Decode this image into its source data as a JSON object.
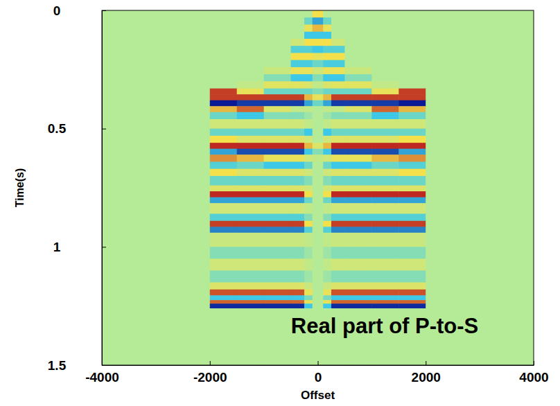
{
  "chart_data": {
    "type": "heatmap",
    "xlabel": "Offset",
    "ylabel": "Time(s)",
    "annotations": [
      "Real part of P-to-S"
    ],
    "xlim": [
      -4000,
      4000
    ],
    "ylim": [
      0,
      1.5
    ],
    "xticks": [
      -4000,
      -2000,
      0,
      2000,
      4000
    ],
    "yticks": [
      0,
      0.5,
      1,
      1.5
    ],
    "zlim": [
      -1,
      1
    ],
    "x_edges": [
      -4000,
      -2000,
      -1500,
      -1000,
      -500,
      -250,
      -100,
      100,
      250,
      500,
      1000,
      1500,
      2000,
      4000
    ],
    "y_edges": [
      0,
      0.03,
      0.06,
      0.09,
      0.12,
      0.15,
      0.18,
      0.21,
      0.24,
      0.27,
      0.3,
      0.33,
      0.355,
      0.38,
      0.405,
      0.43,
      0.46,
      0.5,
      0.53,
      0.56,
      0.585,
      0.61,
      0.64,
      0.67,
      0.7,
      0.74,
      0.765,
      0.79,
      0.815,
      0.86,
      0.89,
      0.915,
      0.94,
      1.0,
      1.05,
      1.1,
      1.15,
      1.18,
      1.205,
      1.225,
      1.24,
      1.26,
      1.5
    ],
    "values": [
      [
        0,
        0,
        0,
        0,
        0,
        0,
        0.5,
        0,
        0,
        0,
        0,
        0,
        0
      ],
      [
        0,
        0,
        0,
        0,
        0,
        -0.3,
        -0.6,
        -0.3,
        0,
        0,
        0,
        0,
        0
      ],
      [
        0,
        0,
        0,
        0,
        0,
        0.4,
        0.6,
        0.4,
        0,
        0,
        0,
        0,
        0
      ],
      [
        0,
        0,
        0,
        0,
        0,
        -0.5,
        -0.5,
        -0.5,
        0,
        0,
        0,
        0,
        0
      ],
      [
        0,
        0,
        0,
        0,
        0.2,
        0.5,
        0.5,
        0.5,
        0.2,
        0,
        0,
        0,
        0
      ],
      [
        0,
        0,
        0,
        0,
        -0.4,
        -0.4,
        -0.5,
        -0.4,
        -0.4,
        0,
        0,
        0,
        0
      ],
      [
        0,
        0,
        0,
        0,
        0.5,
        0.5,
        0.4,
        0.5,
        0.5,
        0,
        0,
        0,
        0
      ],
      [
        0,
        0,
        0,
        0,
        -0.45,
        -0.45,
        -0.3,
        -0.45,
        -0.45,
        0,
        0,
        0,
        0
      ],
      [
        0,
        0,
        0,
        0.15,
        0.4,
        0.4,
        0.2,
        0.4,
        0.4,
        0.15,
        0,
        0,
        0
      ],
      [
        0,
        0,
        0,
        -0.2,
        -0.5,
        -0.5,
        -0.2,
        -0.5,
        -0.5,
        -0.2,
        0,
        0,
        0
      ],
      [
        0,
        0,
        0.1,
        0.35,
        0.35,
        0.3,
        0.1,
        0.3,
        0.35,
        0.35,
        0.1,
        0,
        0
      ],
      [
        0,
        0.9,
        0.4,
        -0.3,
        -0.3,
        -0.3,
        -0.2,
        -0.3,
        -0.3,
        -0.3,
        0.4,
        0.9,
        0
      ],
      [
        0,
        0.9,
        0.9,
        0.9,
        0.9,
        0.6,
        0.4,
        0.6,
        0.9,
        0.9,
        0.9,
        0.9,
        0
      ],
      [
        0,
        -1,
        -0.9,
        -0.9,
        -0.9,
        -0.6,
        -0.3,
        -0.6,
        -0.9,
        -0.9,
        -0.9,
        -1,
        0
      ],
      [
        0,
        0.6,
        0.8,
        0.3,
        0.1,
        0.1,
        0,
        0.1,
        0.1,
        0.3,
        0.8,
        0.6,
        0
      ],
      [
        0,
        -0.3,
        -0.5,
        -0.2,
        -0.2,
        -0.1,
        0,
        -0.1,
        -0.2,
        -0.2,
        -0.5,
        -0.3,
        0
      ],
      [
        0,
        0.2,
        0.2,
        0.2,
        0.2,
        0.1,
        0,
        0.1,
        0.2,
        0.2,
        0.2,
        0.2,
        0
      ],
      [
        0,
        -0.3,
        -0.3,
        -0.3,
        -0.3,
        -0.5,
        0,
        -0.5,
        -0.3,
        -0.3,
        -0.3,
        -0.3,
        0
      ],
      [
        0,
        0.5,
        0.3,
        0.3,
        0.3,
        0.2,
        0,
        0.2,
        0.3,
        0.3,
        0.3,
        0.5,
        0
      ],
      [
        0,
        0.95,
        0.95,
        0.95,
        0.95,
        0.6,
        0.3,
        0.6,
        0.95,
        0.95,
        0.95,
        0.95,
        0
      ],
      [
        0,
        -0.6,
        -0.85,
        -0.85,
        -0.85,
        -0.5,
        -0.2,
        -0.5,
        -0.85,
        -0.85,
        -0.85,
        -0.6,
        0
      ],
      [
        0,
        0.7,
        0.6,
        0.4,
        0.4,
        0.2,
        0.1,
        0.2,
        0.4,
        0.4,
        0.6,
        0.7,
        0
      ],
      [
        0,
        -0.4,
        -0.3,
        -0.5,
        -0.5,
        -0.3,
        0,
        -0.3,
        -0.5,
        -0.5,
        -0.3,
        -0.4,
        0
      ],
      [
        0,
        0.5,
        0.3,
        0.3,
        0.3,
        0.2,
        0,
        0.2,
        0.3,
        0.3,
        0.3,
        0.5,
        0
      ],
      [
        0,
        -0.3,
        -0.3,
        -0.3,
        -0.3,
        -0.2,
        0,
        -0.2,
        -0.3,
        -0.3,
        -0.3,
        -0.3,
        0
      ],
      [
        0,
        0.3,
        0.3,
        0.3,
        0.3,
        0.2,
        0,
        0.2,
        0.3,
        0.3,
        0.3,
        0.3,
        0
      ],
      [
        0,
        0.95,
        0.95,
        0.95,
        0.95,
        0.5,
        0,
        0.5,
        0.95,
        0.95,
        0.95,
        0.95,
        0
      ],
      [
        0,
        -0.6,
        -0.6,
        -0.6,
        -0.6,
        -0.3,
        0,
        -0.3,
        -0.6,
        -0.6,
        -0.6,
        -0.6,
        0
      ],
      [
        0,
        0.2,
        0.2,
        0.2,
        0.2,
        0.1,
        0,
        0.1,
        0.2,
        0.2,
        0.2,
        0.2,
        0
      ],
      [
        0,
        -0.4,
        -0.4,
        -0.4,
        -0.4,
        -0.2,
        0,
        -0.2,
        -0.4,
        -0.4,
        -0.4,
        -0.4,
        0
      ],
      [
        0,
        0.9,
        0.9,
        0.9,
        0.9,
        0.5,
        0,
        0.5,
        0.9,
        0.9,
        0.9,
        0.9,
        0
      ],
      [
        0,
        -0.7,
        -0.7,
        -0.7,
        -0.7,
        -0.4,
        0,
        -0.4,
        -0.7,
        -0.7,
        -0.7,
        -0.7,
        0
      ],
      [
        0,
        0.15,
        0.15,
        0.15,
        0.15,
        0.1,
        0,
        0.1,
        0.15,
        0.15,
        0.15,
        0.15,
        0
      ],
      [
        0,
        -0.2,
        -0.2,
        -0.2,
        -0.2,
        -0.1,
        0,
        -0.1,
        -0.2,
        -0.2,
        -0.2,
        -0.2,
        0
      ],
      [
        0,
        0.2,
        0.2,
        0.2,
        0.2,
        0.1,
        0,
        0.1,
        0.2,
        0.2,
        0.2,
        0.2,
        0
      ],
      [
        0,
        -0.2,
        -0.2,
        -0.2,
        -0.2,
        -0.1,
        0,
        -0.1,
        -0.2,
        -0.2,
        -0.2,
        -0.2,
        0
      ],
      [
        0,
        0.3,
        0.3,
        0.3,
        0.3,
        0.15,
        0,
        0.15,
        0.3,
        0.3,
        0.3,
        0.3,
        0
      ],
      [
        0,
        0.85,
        0.85,
        0.85,
        0.85,
        0.4,
        0,
        0.4,
        0.85,
        0.85,
        0.85,
        0.85,
        0
      ],
      [
        0,
        -0.5,
        -0.5,
        -0.5,
        -0.5,
        -0.25,
        0,
        -0.25,
        -0.5,
        -0.5,
        -0.5,
        -0.5,
        0
      ],
      [
        0,
        0.8,
        0.8,
        0.8,
        0.8,
        0.4,
        0,
        0.4,
        0.8,
        0.8,
        0.8,
        0.8,
        0
      ],
      [
        0,
        -0.95,
        -0.95,
        -0.95,
        -0.95,
        -0.5,
        0,
        -0.5,
        -0.95,
        -0.95,
        -0.95,
        -0.95,
        0
      ],
      [
        0,
        0,
        0,
        0,
        0,
        0,
        0,
        0,
        0,
        0,
        0,
        0,
        0
      ]
    ]
  }
}
